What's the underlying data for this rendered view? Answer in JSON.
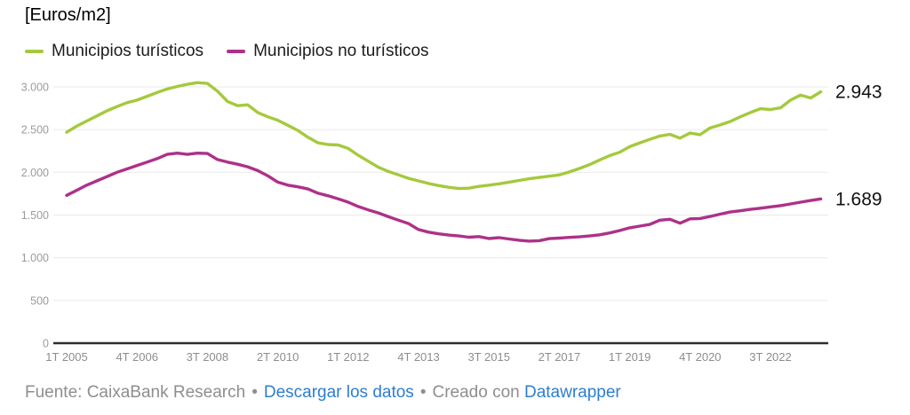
{
  "header": {
    "title": "[Euros/m2]"
  },
  "footer": {
    "source_text": "Fuente: CaixaBank Research",
    "separator": "•",
    "download_label": "Descargar los datos",
    "created_with_label": "Creado con",
    "datawrapper_label": "Datawrapper",
    "link_color": "#2c7ed2",
    "text_color": "#8e8e8e"
  },
  "chart_data": {
    "type": "line",
    "title": "[Euros/m2]",
    "ylabel": "Euros/m2",
    "xlabel": "",
    "grid": "horizontal",
    "legend_position": "top",
    "ylim": [
      0,
      3000
    ],
    "y_ticks": [
      0,
      500,
      1000,
      1500,
      2000,
      2500,
      3000
    ],
    "y_tick_labels": [
      "0",
      "500",
      "1.000",
      "1.500",
      "2.000",
      "2.500",
      "3.000"
    ],
    "x_tick_interval": 7,
    "x_labels_shown": [
      "1T 2005",
      "4T 2006",
      "3T 2008",
      "2T 2010",
      "1T 2012",
      "4T 2013",
      "3T 2015",
      "2T 2017",
      "1T 2019",
      "4T 2020",
      "3T 2022"
    ],
    "x": [
      "1T 2005",
      "2T 2005",
      "3T 2005",
      "4T 2005",
      "1T 2006",
      "2T 2006",
      "3T 2006",
      "4T 2006",
      "1T 2007",
      "2T 2007",
      "3T 2007",
      "4T 2007",
      "1T 2008",
      "2T 2008",
      "3T 2008",
      "4T 2008",
      "1T 2009",
      "2T 2009",
      "3T 2009",
      "4T 2009",
      "1T 2010",
      "2T 2010",
      "3T 2010",
      "4T 2010",
      "1T 2011",
      "2T 2011",
      "3T 2011",
      "4T 2011",
      "1T 2012",
      "2T 2012",
      "3T 2012",
      "4T 2012",
      "1T 2013",
      "2T 2013",
      "3T 2013",
      "4T 2013",
      "1T 2014",
      "2T 2014",
      "3T 2014",
      "4T 2014",
      "1T 2015",
      "2T 2015",
      "3T 2015",
      "4T 2015",
      "1T 2016",
      "2T 2016",
      "3T 2016",
      "4T 2016",
      "1T 2017",
      "2T 2017",
      "3T 2017",
      "4T 2017",
      "1T 2018",
      "2T 2018",
      "3T 2018",
      "4T 2018",
      "1T 2019",
      "2T 2019",
      "3T 2019",
      "4T 2019",
      "1T 2020",
      "2T 2020",
      "3T 2020",
      "4T 2020",
      "1T 2021",
      "2T 2021",
      "3T 2021",
      "4T 2021",
      "1T 2022",
      "2T 2022",
      "3T 2022",
      "4T 2022",
      "1T 2023",
      "2T 2023",
      "3T 2023",
      "4T 2023"
    ],
    "series": [
      {
        "name": "Municipios turísticos",
        "color": "#a5c93c",
        "end_label": "2.943",
        "end_value": 2943,
        "values": [
          2470,
          2540,
          2600,
          2660,
          2720,
          2770,
          2815,
          2845,
          2890,
          2935,
          2975,
          3005,
          3030,
          3050,
          3040,
          2950,
          2830,
          2780,
          2790,
          2700,
          2650,
          2610,
          2550,
          2490,
          2410,
          2345,
          2325,
          2320,
          2280,
          2200,
          2130,
          2060,
          2010,
          1970,
          1930,
          1900,
          1870,
          1845,
          1825,
          1810,
          1815,
          1835,
          1850,
          1865,
          1885,
          1905,
          1925,
          1940,
          1955,
          1970,
          2005,
          2045,
          2090,
          2145,
          2195,
          2235,
          2300,
          2345,
          2385,
          2425,
          2445,
          2400,
          2460,
          2440,
          2520,
          2555,
          2595,
          2650,
          2700,
          2745,
          2735,
          2755,
          2845,
          2905,
          2870,
          2943
        ]
      },
      {
        "name": "Municipios no turísticos",
        "color": "#ad3189",
        "end_label": "1.689",
        "end_value": 1689,
        "values": [
          1730,
          1790,
          1850,
          1900,
          1950,
          2000,
          2040,
          2080,
          2120,
          2160,
          2210,
          2225,
          2210,
          2225,
          2220,
          2150,
          2120,
          2095,
          2065,
          2020,
          1960,
          1885,
          1850,
          1830,
          1805,
          1755,
          1725,
          1690,
          1650,
          1600,
          1560,
          1525,
          1480,
          1440,
          1400,
          1330,
          1300,
          1280,
          1265,
          1255,
          1240,
          1248,
          1225,
          1235,
          1220,
          1205,
          1195,
          1200,
          1224,
          1230,
          1238,
          1245,
          1255,
          1268,
          1290,
          1318,
          1350,
          1370,
          1390,
          1440,
          1450,
          1405,
          1455,
          1460,
          1483,
          1510,
          1535,
          1550,
          1566,
          1580,
          1595,
          1610,
          1630,
          1650,
          1670,
          1689
        ]
      }
    ],
    "colors": {
      "grid": "#e8e8e8",
      "baseline": "#2e2e2e",
      "axis_text": "#9b9b9b",
      "tick_text": "#8d8d8d",
      "value_label": "#111111"
    }
  }
}
